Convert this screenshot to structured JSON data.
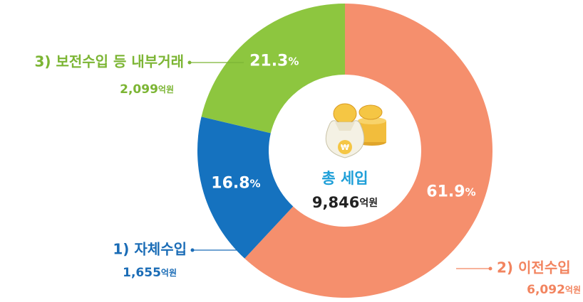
{
  "chart_data": {
    "type": "pie",
    "categories": [
      "1) 자체수입",
      "2) 이전수입",
      "3) 보전수입 등 내부거래"
    ],
    "values": [
      16.8,
      61.9,
      21.3
    ],
    "value_labels": [
      "16.8%",
      "61.9%",
      "21.3%"
    ],
    "amounts": [
      1655,
      6092,
      2099
    ],
    "amount_labels": [
      "1,655억원",
      "6,092억원",
      "2,099억원"
    ],
    "colors": [
      "#1572bf",
      "#f58f6d",
      "#8dc63f"
    ],
    "total_title": "총 세입",
    "total": 9846,
    "total_label": "9,846억원"
  }
}
